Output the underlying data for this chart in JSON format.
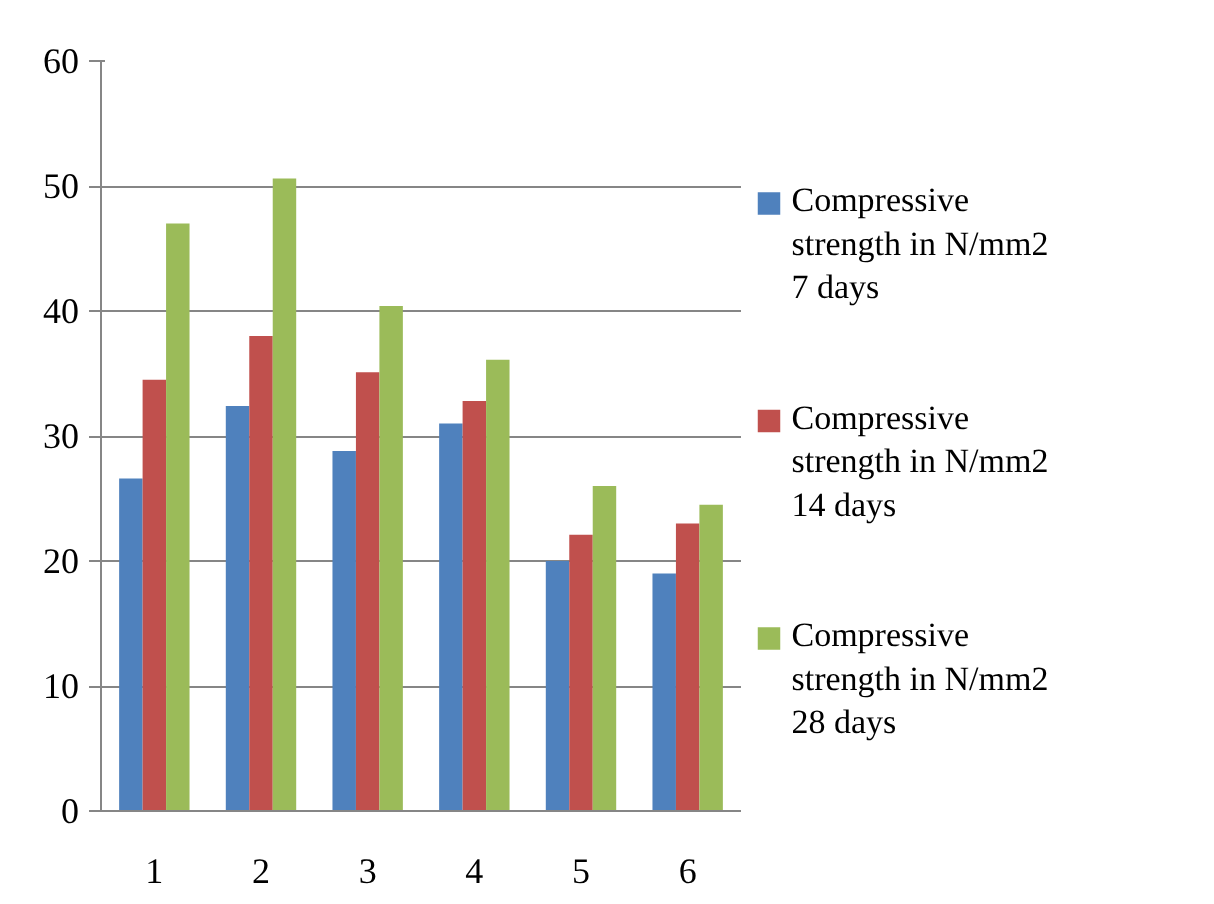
{
  "chart_data": {
    "type": "bar",
    "categories": [
      "1",
      "2",
      "3",
      "4",
      "5",
      "6"
    ],
    "series": [
      {
        "name": "Compressive strength in N/mm2 7 days",
        "color": "#4f81bd",
        "values": [
          26.6,
          32.4,
          28.8,
          31.0,
          20.0,
          19.0
        ]
      },
      {
        "name": "Compressive strength in N/mm2 14 days",
        "color": "#c0504d",
        "values": [
          34.5,
          38.0,
          35.1,
          32.8,
          22.1,
          23.0
        ]
      },
      {
        "name": "Compressive strength in N/mm2 28 days",
        "color": "#9bbb59",
        "values": [
          47.0,
          50.6,
          40.4,
          36.1,
          26.0,
          24.5
        ]
      }
    ],
    "ylim": [
      0,
      60
    ],
    "yticks": [
      0,
      10,
      20,
      30,
      40,
      50,
      60
    ],
    "grid": "y",
    "legend": "right"
  }
}
